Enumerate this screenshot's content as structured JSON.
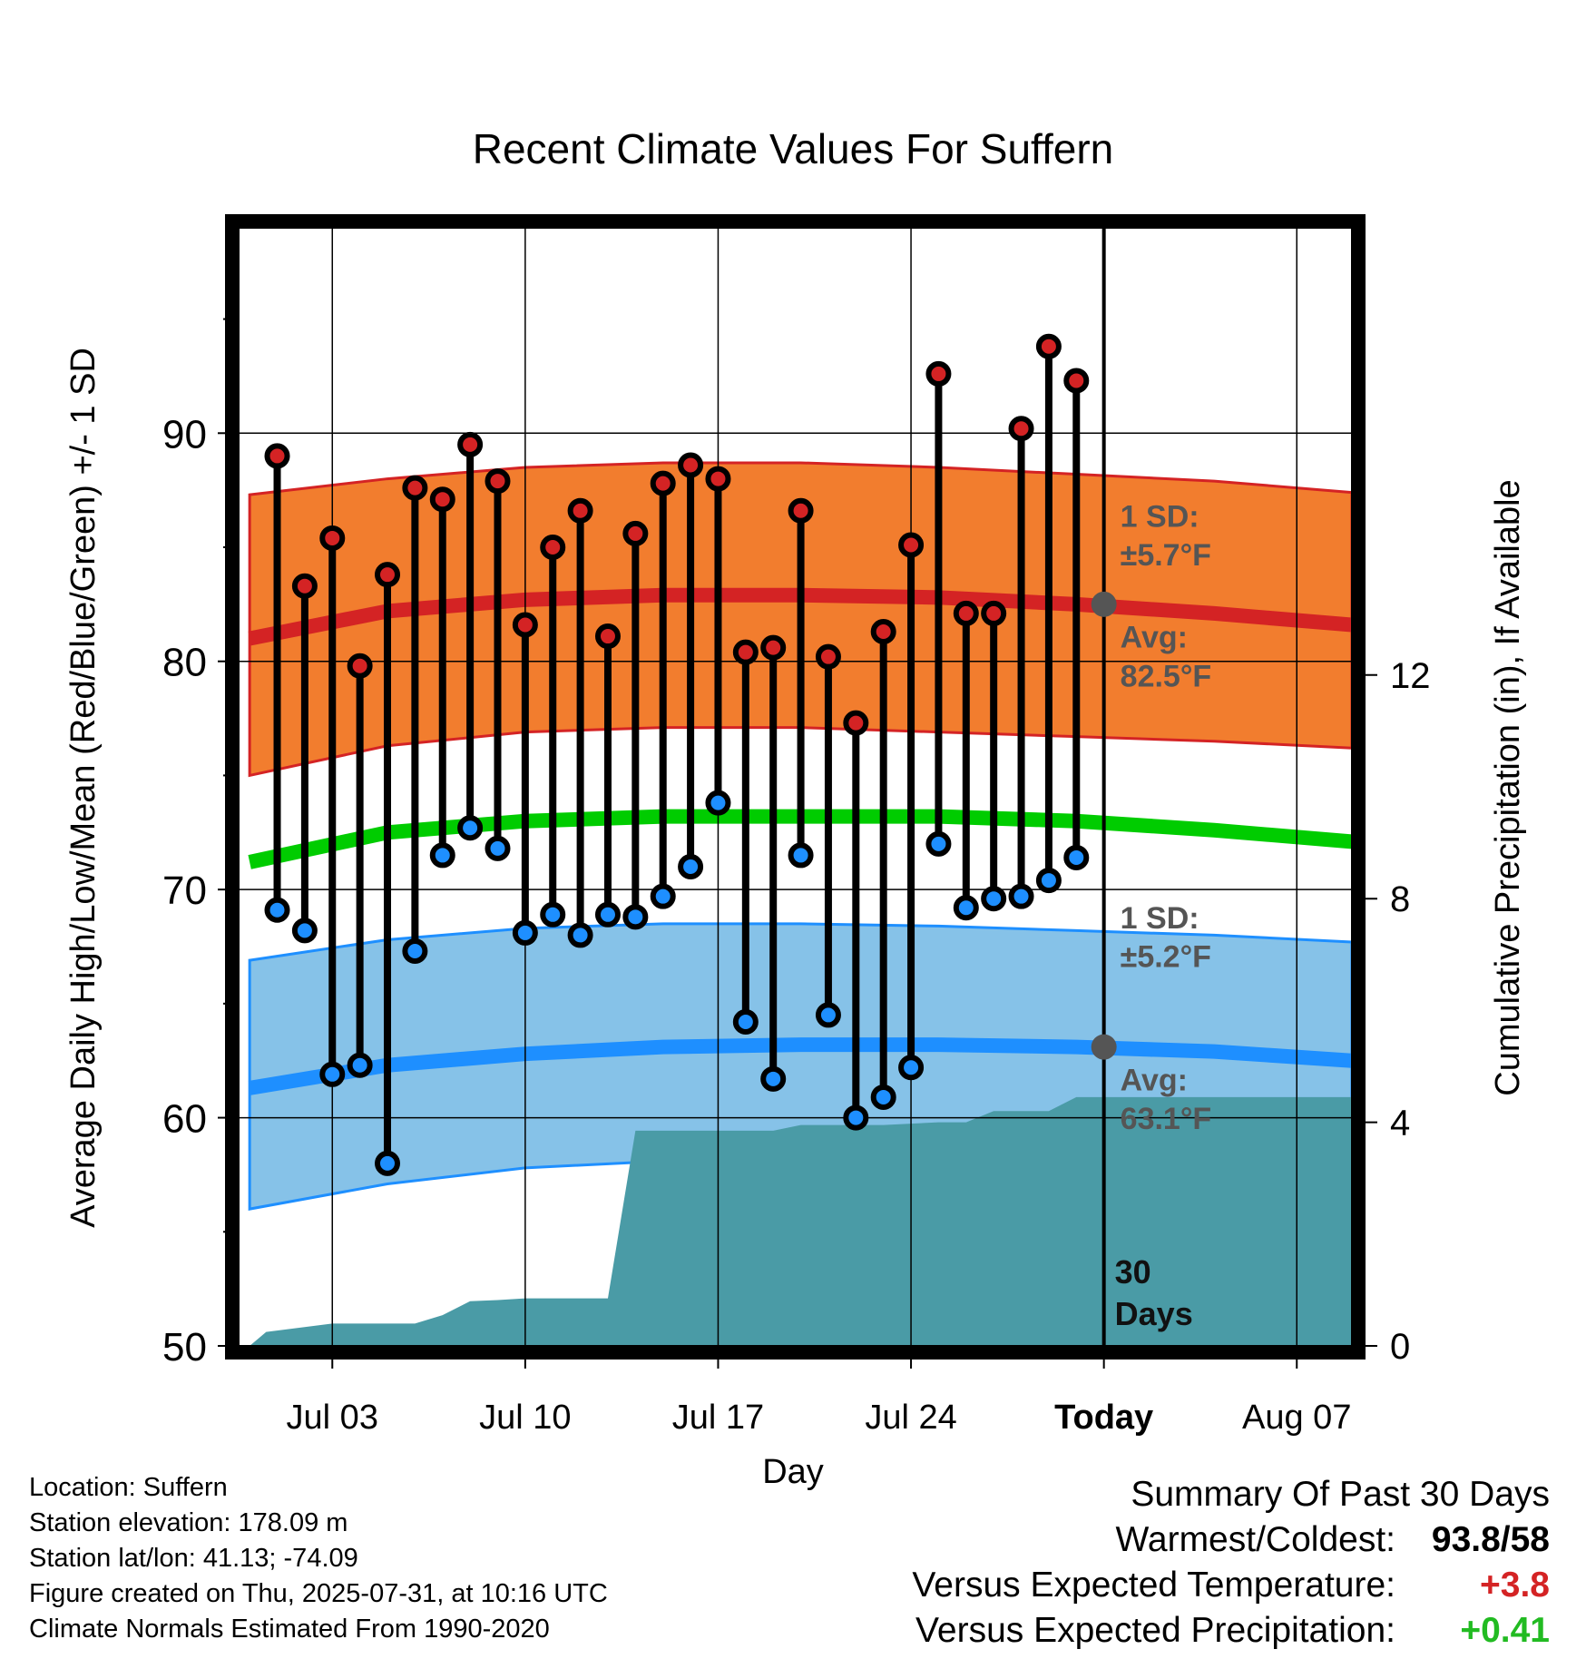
{
  "chart_data": {
    "type": "line",
    "title": "Recent Climate Values For Suffern",
    "xlabel": "Day",
    "ylabel": "Average Daily High/Low/Mean (Red/Blue/Green) +/- 1 SD",
    "y2label": "Cumulative Precipitation (in), If Available",
    "ylim": [
      50,
      99
    ],
    "y2lim": [
      0,
      20
    ],
    "yticks": [
      "50",
      "60",
      "70",
      "80",
      "90"
    ],
    "y2ticks": [
      "0",
      "4",
      "8",
      "12"
    ],
    "xticks": [
      {
        "day": 3,
        "label": "Jul 03"
      },
      {
        "day": 10,
        "label": "Jul 10"
      },
      {
        "day": 17,
        "label": "Jul 17"
      },
      {
        "day": 24,
        "label": "Jul 24"
      },
      {
        "day": 31,
        "label": "Today"
      },
      {
        "day": 38,
        "label": "Aug 07"
      }
    ],
    "xlim": [
      -0.4,
      40
    ],
    "today_day": 31,
    "today_marker": "30\nDays",
    "observed": {
      "days": [
        1,
        2,
        3,
        4,
        5,
        6,
        7,
        8,
        9,
        10,
        11,
        12,
        13,
        14,
        15,
        16,
        17,
        18,
        19,
        20,
        21,
        22,
        23,
        24,
        25,
        26,
        27,
        28,
        29,
        30
      ],
      "high": [
        89.0,
        83.3,
        85.4,
        79.8,
        83.8,
        87.6,
        87.1,
        89.5,
        87.9,
        81.6,
        85.0,
        86.6,
        81.1,
        85.6,
        87.8,
        88.6,
        88.0,
        80.4,
        80.6,
        86.6,
        80.2,
        77.3,
        81.3,
        85.1,
        92.6,
        82.1,
        82.1,
        90.2,
        93.8,
        92.3
      ],
      "low": [
        69.1,
        68.2,
        61.9,
        62.3,
        58.0,
        67.3,
        71.5,
        72.7,
        71.8,
        68.1,
        68.9,
        68.0,
        68.9,
        68.8,
        69.7,
        71.0,
        73.8,
        64.2,
        61.7,
        71.5,
        64.5,
        60.0,
        60.9,
        62.2,
        72.0,
        69.2,
        69.6,
        69.7,
        70.4,
        71.4
      ]
    },
    "normals": {
      "days": [
        0,
        5,
        10,
        15,
        20,
        25,
        30,
        35,
        40
      ],
      "high_avg": [
        81.0,
        82.2,
        82.7,
        82.9,
        82.9,
        82.8,
        82.5,
        82.1,
        81.6
      ],
      "high_upper": [
        87.3,
        88.0,
        88.5,
        88.7,
        88.7,
        88.5,
        88.2,
        87.9,
        87.4
      ],
      "high_lower": [
        75.0,
        76.3,
        76.9,
        77.1,
        77.1,
        76.9,
        76.7,
        76.5,
        76.2
      ],
      "mean_avg": [
        71.2,
        72.5,
        73.0,
        73.2,
        73.2,
        73.2,
        73.0,
        72.6,
        72.1
      ],
      "low_avg": [
        61.3,
        62.3,
        62.8,
        63.1,
        63.2,
        63.2,
        63.1,
        62.9,
        62.5
      ],
      "low_upper": [
        66.9,
        67.8,
        68.3,
        68.5,
        68.5,
        68.4,
        68.2,
        68.0,
        67.7
      ],
      "low_lower": [
        56.0,
        57.1,
        57.8,
        58.1,
        58.2,
        58.1,
        57.9,
        57.8,
        57.7
      ]
    },
    "precip": {
      "days": [
        0,
        0.6,
        3,
        4,
        6,
        7,
        8,
        9,
        10,
        12,
        13,
        14,
        17,
        19,
        20,
        23,
        25,
        26,
        27,
        29,
        30,
        31,
        40
      ],
      "values": [
        0.0,
        0.25,
        0.4,
        0.4,
        0.4,
        0.55,
        0.8,
        0.82,
        0.85,
        0.85,
        0.85,
        3.85,
        3.85,
        3.85,
        3.95,
        3.95,
        4.0,
        4.0,
        4.2,
        4.2,
        4.45,
        4.45,
        4.45
      ]
    },
    "annotations": {
      "high_sd": "1 SD:",
      "high_sd_value": "±5.7°F",
      "high_avg_label": "Avg:",
      "high_avg_value": "82.5°F",
      "low_sd": "1 SD:",
      "low_sd_value": "±5.2°F",
      "low_avg_label": "Avg:",
      "low_avg_value": "63.1°F"
    },
    "colors": {
      "high_band": "#f27d2e",
      "high_line": "#d42324",
      "mean_line": "#00cc00",
      "low_band": "#86c2e8",
      "low_line": "#1e8fff",
      "precip": "#4a9ba6",
      "marker_high": "#d42324",
      "marker_low": "#1e8fff",
      "annotation": "#555555"
    }
  },
  "info": {
    "location": "Location: Suffern",
    "elevation": "Station elevation: 178.09 m",
    "latlon": "Station lat/lon: 41.13; -74.09",
    "created": "Figure created on Thu, 2025-07-31, at 10:16 UTC",
    "normals": "Climate Normals Estimated From 1990-2020"
  },
  "summary": {
    "heading": "Summary Of Past 30 Days",
    "warmest_label": "Warmest/Coldest:",
    "warmest_value": "93.8/58",
    "temp_label": "Versus Expected Temperature:",
    "temp_value": "+3.8",
    "temp_color": "#d42324",
    "precip_label": "Versus Expected Precipitation:",
    "precip_value": "+0.41",
    "precip_color": "#22bb22"
  }
}
